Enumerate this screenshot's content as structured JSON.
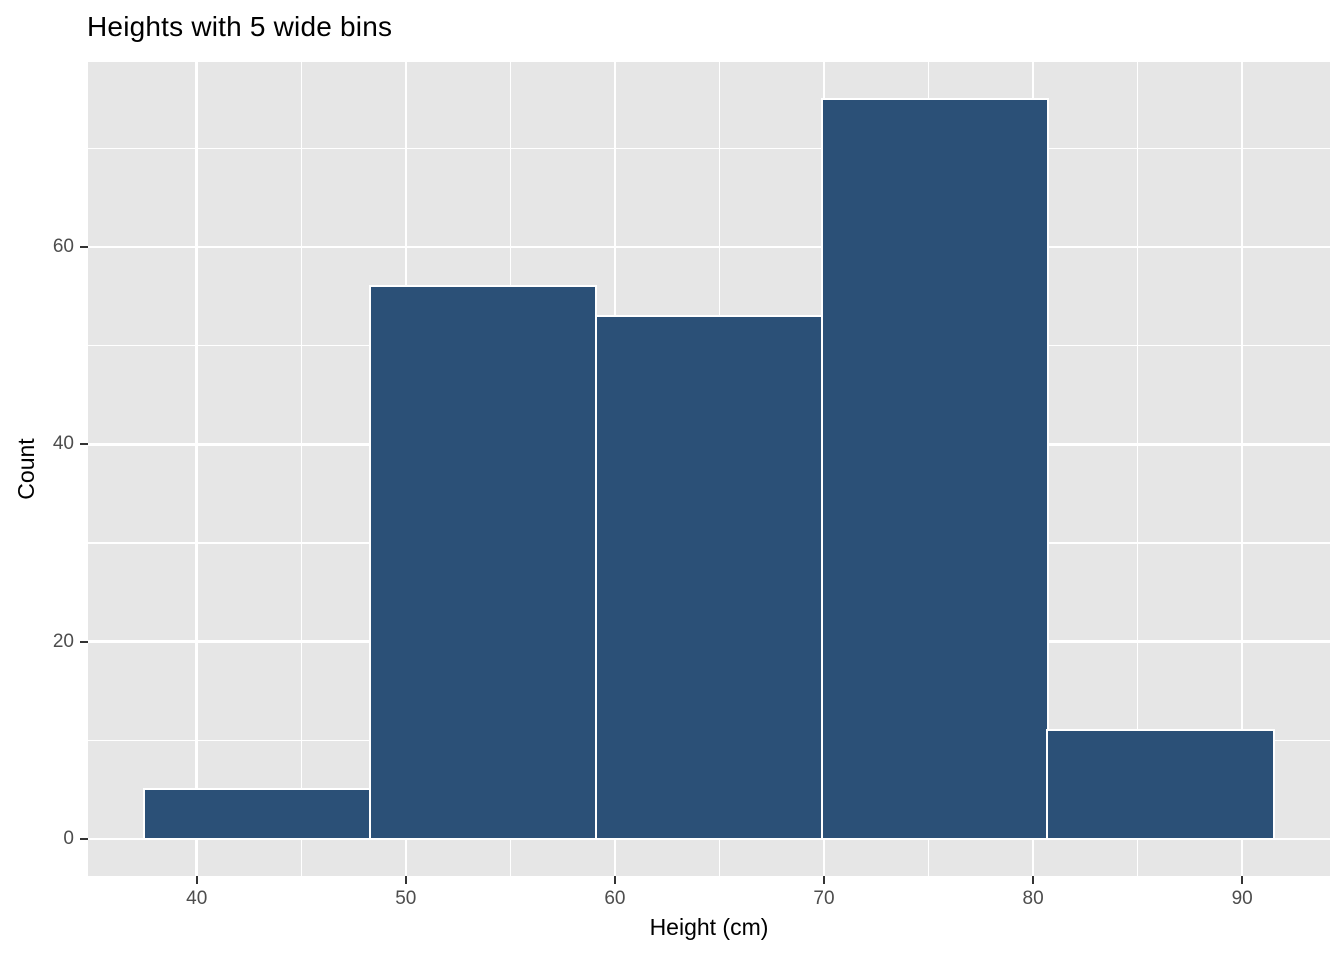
{
  "title": "Heights with 5 wide bins",
  "colors": {
    "page_bg": "#ffffff",
    "panel_bg": "#e6e6e6",
    "grid": "#ffffff",
    "bar_fill": "#2b5077",
    "bar_stroke": "#ffffff",
    "tick_mark": "#333333",
    "tick_label": "#4d4d4d",
    "axis_title": "#000000",
    "title_color": "#000000"
  },
  "chart_data": {
    "type": "bar",
    "subtype": "histogram",
    "title": "Heights with 5 wide bins",
    "xlabel": "Height (cm)",
    "ylabel": "Count",
    "n_bins": 5,
    "bin_width": 10.8,
    "bins": [
      {
        "x0": 37.5,
        "x1": 48.3,
        "count": 5
      },
      {
        "x0": 48.3,
        "x1": 59.1,
        "count": 56
      },
      {
        "x0": 59.1,
        "x1": 69.9,
        "count": 53
      },
      {
        "x0": 69.9,
        "x1": 80.7,
        "count": 75
      },
      {
        "x0": 80.7,
        "x1": 91.5,
        "count": 11
      }
    ],
    "x_ticks": [
      40,
      50,
      60,
      70,
      80,
      90
    ],
    "y_ticks": [
      0,
      20,
      40,
      60
    ],
    "x_minor_ticks": [
      45,
      55,
      65,
      75,
      85
    ],
    "y_minor_ticks": [
      10,
      30,
      50,
      70
    ],
    "xlim": [
      34.8,
      94.2
    ],
    "ylim": [
      -3.75,
      78.75
    ],
    "grid": true,
    "legend": "none",
    "theme": "ggplot-grey"
  }
}
